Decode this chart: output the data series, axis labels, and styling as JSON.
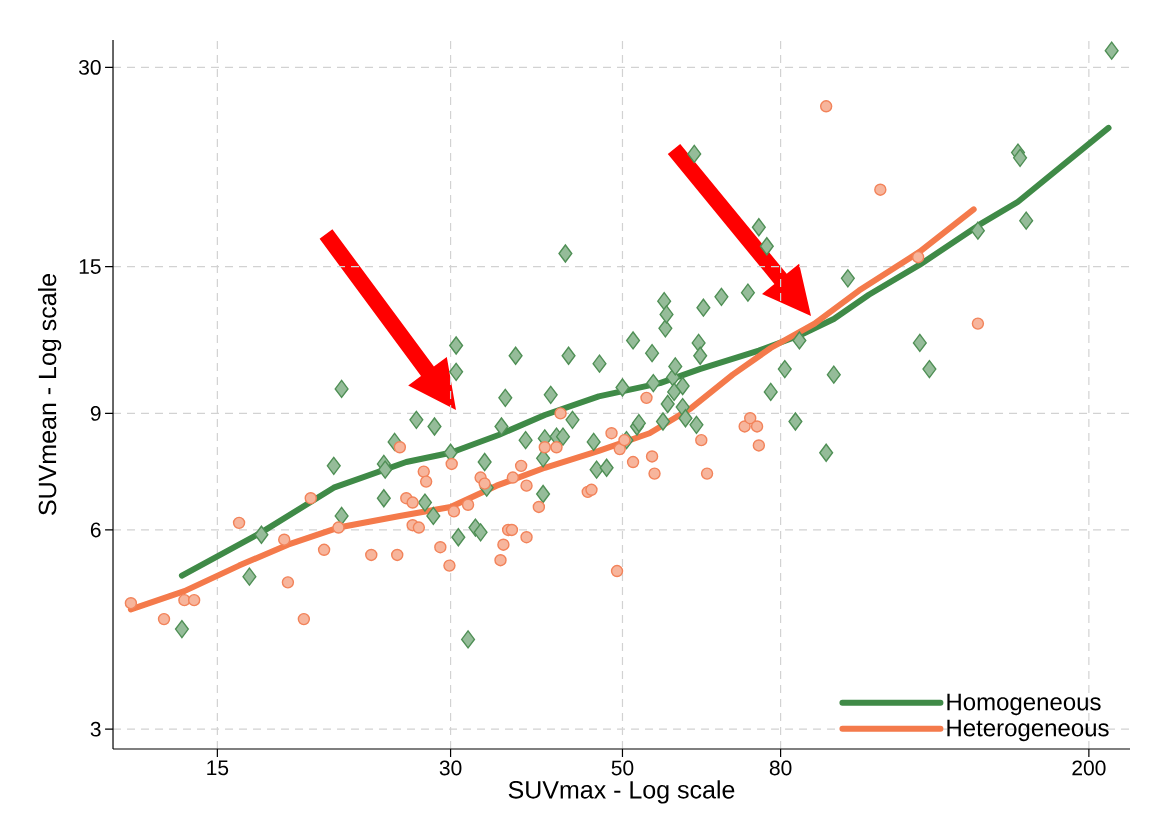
{
  "chart_data": {
    "type": "scatter",
    "xlabel": "SUVmax - Log scale",
    "ylabel": "SUVmean - Log scale",
    "log": "xy",
    "grid": true,
    "legend": "bottom right",
    "xlim": [
      11,
      226
    ],
    "ylim": [
      2.8,
      33
    ],
    "xticks": [
      15,
      30,
      50,
      80,
      200
    ],
    "yticks": [
      3,
      6,
      9,
      15,
      30
    ],
    "series": [
      {
        "marker": "diamond",
        "color": "#4f8f55",
        "x": [
          13.5,
          16.5,
          17.1,
          21.2,
          21.7,
          21.7,
          24.6,
          24.6,
          24.7,
          25.4,
          27.1,
          27.8,
          28.6,
          28.5,
          30,
          30.5,
          30.5,
          30.7,
          31.6,
          32.3,
          32.8,
          33.2,
          33.4,
          34.9,
          35.3,
          36.4,
          37.5,
          39.5,
          39.5,
          39.7,
          40.4,
          41.1,
          41.9,
          42.2,
          42.6,
          43.1,
          45.9,
          46.3,
          46.7,
          47.7,
          50,
          50.6,
          51.6,
          52.2,
          52.5,
          54.6,
          54.8,
          56.4,
          56.6,
          56.8,
          57,
          57.2,
          58.1,
          58.3,
          58.5,
          59.8,
          59.8,
          60.3,
          61.9,
          62.3,
          62.7,
          63,
          63.6,
          67.1,
          72.6,
          75,
          76.8,
          77.7,
          81,
          83.6,
          84.6,
          91.6,
          93.7,
          97.7,
          121,
          124.5,
          143.8,
          162,
          163,
          166,
          214
        ],
        "values": [
          4.25,
          5.1,
          5.9,
          7.5,
          9.8,
          6.3,
          6.7,
          7.55,
          7.4,
          8.15,
          8.8,
          6.6,
          8.6,
          6.3,
          7.85,
          11.4,
          10.4,
          5.85,
          4.1,
          6.05,
          5.95,
          7.6,
          6.95,
          8.6,
          9.5,
          11,
          8.2,
          6.8,
          7.7,
          8.25,
          9.6,
          8.3,
          8.3,
          15.7,
          11,
          8.8,
          8.15,
          7.4,
          10.7,
          7.45,
          9.85,
          8.2,
          11.6,
          8.6,
          8.7,
          11.1,
          10,
          8.75,
          13.3,
          12.1,
          12.7,
          9.3,
          10.2,
          9.7,
          10.6,
          9.9,
          9.2,
          8.85,
          22.2,
          8.65,
          11.5,
          11,
          13,
          13.5,
          13.7,
          17.2,
          16.1,
          9.7,
          10.5,
          8.75,
          11.6,
          7.85,
          10.3,
          14.4,
          11.5,
          10.5,
          17,
          22.3,
          21.9,
          17.6,
          31.8
        ]
      },
      {
        "marker": "circle",
        "color": "#f2835a",
        "x": [
          11.6,
          12.8,
          13.6,
          14,
          16,
          18.3,
          18.5,
          19.4,
          19.8,
          20.6,
          21.5,
          23.7,
          25.6,
          25.8,
          26.3,
          26.8,
          26.8,
          27.3,
          27.7,
          27.9,
          29.1,
          29.9,
          30.1,
          30.3,
          31.6,
          32.8,
          33.2,
          34.8,
          35.1,
          35.6,
          36,
          36.1,
          37,
          37.6,
          37.6,
          39,
          39.7,
          41.1,
          41.6,
          45.1,
          45.6,
          48.4,
          49.2,
          49.6,
          50.3,
          51.6,
          53.7,
          54.6,
          55,
          63.2,
          64.3,
          71.9,
          73.1,
          74.6,
          75,
          91.6,
          107.6,
          120.4,
          143.8
        ],
        "values": [
          4.65,
          4.4,
          4.7,
          4.7,
          6.15,
          5.8,
          5,
          4.4,
          6.7,
          5.6,
          6.05,
          5.5,
          5.5,
          8,
          6.7,
          6.6,
          6.1,
          6.05,
          7.35,
          7.1,
          5.65,
          5.3,
          7.55,
          6.4,
          6.55,
          7.2,
          7.05,
          5.4,
          5.7,
          6,
          6,
          7.2,
          7.5,
          7,
          5.85,
          6.5,
          8,
          8,
          9,
          6.85,
          6.9,
          8.4,
          5.2,
          7.95,
          8.2,
          7.6,
          9.5,
          7.75,
          7.3,
          8.2,
          7.3,
          8.6,
          8.85,
          8.6,
          8.05,
          26.2,
          19.6,
          15.5,
          12.3
        ]
      },
      {
        "type": "line",
        "marker": "none",
        "name": "Homogeneous",
        "color": "#3f8a47",
        "x": [
          13.5,
          17.1,
          21.2,
          26.3,
          30,
          34.6,
          39.7,
          46.6,
          55.9,
          62.9,
          75,
          84.6,
          93.7,
          104,
          121,
          145,
          162,
          212
        ],
        "values": [
          5.12,
          5.95,
          6.95,
          7.6,
          7.85,
          8.35,
          8.95,
          9.55,
          10,
          10.5,
          11.2,
          11.8,
          12.5,
          13.6,
          15.1,
          17.4,
          18.8,
          24.3
        ]
      },
      {
        "type": "line",
        "marker": "none",
        "name": "Heterogeneous",
        "color": "#f47a4b",
        "x": [
          11.6,
          13.6,
          16,
          18.5,
          21.5,
          25.8,
          30,
          34.4,
          39.7,
          46.6,
          54.2,
          61.2,
          69.4,
          77.7,
          88.5,
          101,
          121,
          142
        ],
        "values": [
          4.55,
          4.85,
          5.3,
          5.7,
          6.05,
          6.3,
          6.5,
          7,
          7.45,
          7.9,
          8.4,
          9.15,
          10.3,
          11.3,
          12.3,
          13.8,
          15.8,
          18.3
        ]
      }
    ]
  }
}
